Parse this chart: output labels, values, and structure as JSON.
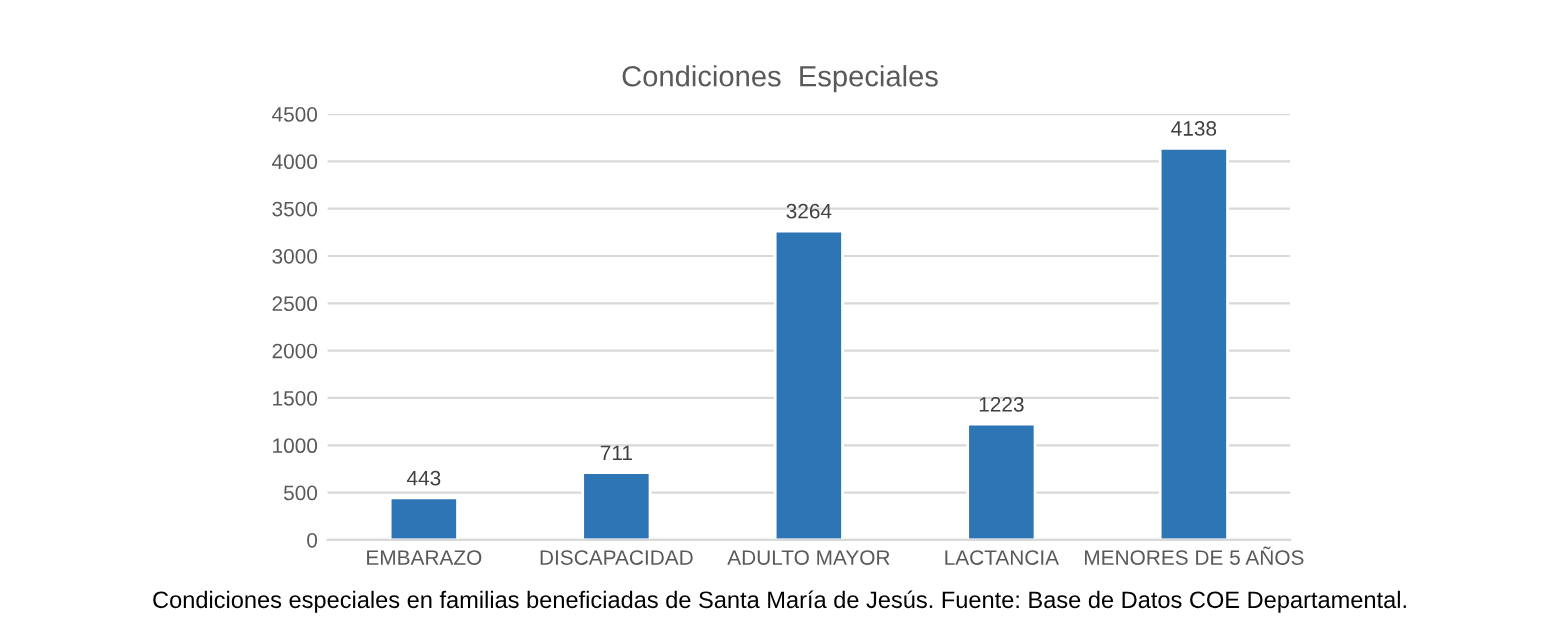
{
  "chart_data": {
    "type": "bar",
    "title": "Condiciones  Especiales",
    "categories": [
      "EMBARAZO",
      "DISCAPACIDAD",
      "ADULTO MAYOR",
      "LACTANCIA",
      "MENORES DE 5 AÑOS"
    ],
    "values": [
      443,
      711,
      3264,
      1223,
      4138
    ],
    "color": "#2e75b6",
    "ylim": [
      0,
      4500
    ],
    "yticks": [
      0,
      500,
      1000,
      1500,
      2000,
      2500,
      3000,
      3500,
      4000,
      4500
    ],
    "grid": "y",
    "data_labels": true,
    "annotations": [
      "Condiciones especiales en familias beneficiadas de Santa María de Jesús. Fuente: Base de Datos COE Departamental."
    ]
  }
}
